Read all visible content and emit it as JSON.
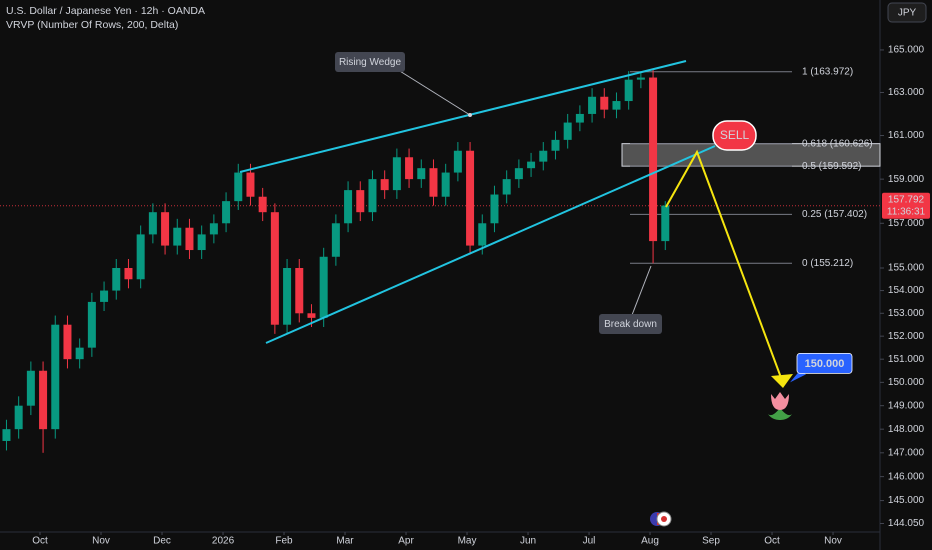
{
  "header": {
    "symbol": "U.S. Dollar / Japanese Yen · 12h · OANDA",
    "indicator": "VRVP (Number Of Rows, 200, Delta)",
    "currency": "JPY"
  },
  "chart_data": {
    "type": "candlestick",
    "x": [
      -0.55,
      -0.35,
      -0.15,
      0.05,
      0.25,
      0.45,
      0.65,
      0.85,
      1.05,
      1.25,
      1.45,
      1.65,
      1.85,
      2.05,
      2.25,
      2.45,
      2.65,
      2.85,
      3.05,
      3.25,
      3.45,
      3.65,
      3.85,
      4.05,
      4.25,
      4.45,
      4.65,
      4.85,
      5.05,
      5.25,
      5.45,
      5.65,
      5.85,
      6.05,
      6.25,
      6.45,
      6.65,
      6.85,
      7.05,
      7.25,
      7.45,
      7.65,
      7.85,
      8.05,
      8.25,
      8.45,
      8.65,
      8.85,
      9.05,
      9.25,
      9.45,
      9.65,
      9.85,
      10.05,
      10.25
    ],
    "open": [
      147.5,
      148,
      149,
      150.5,
      148,
      152.5,
      151,
      151.5,
      153.5,
      154,
      155,
      154.5,
      156.5,
      157.5,
      156,
      156.8,
      155.8,
      156.5,
      157,
      158,
      159.3,
      158.2,
      157.5,
      152.5,
      155,
      153,
      152.8,
      155.5,
      157,
      158.5,
      157.5,
      159,
      158.5,
      160,
      159,
      159.5,
      158.2,
      159.3,
      160.3,
      156,
      157,
      158.3,
      159,
      159.5,
      159.8,
      160.3,
      160.8,
      161.6,
      162,
      162.8,
      162.2,
      162.6,
      163.6,
      163.7,
      156.2
    ],
    "high": [
      148.4,
      149.4,
      150.9,
      150.9,
      152.9,
      152.9,
      151.9,
      153.9,
      154.4,
      155.4,
      155.4,
      156.9,
      157.9,
      157.9,
      157.2,
      157.2,
      156.9,
      157.4,
      158.4,
      159.7,
      159.7,
      158.6,
      157.9,
      155.4,
      155.4,
      153.4,
      155.9,
      157.4,
      158.9,
      158.9,
      159.4,
      159.4,
      160.4,
      160.4,
      159.9,
      159.9,
      159.7,
      160.7,
      160.7,
      157.4,
      158.7,
      159.4,
      159.9,
      160.2,
      160.7,
      161.2,
      162,
      162.4,
      163.2,
      163.2,
      163,
      164,
      163.97,
      164.1,
      158
    ],
    "low": [
      147.1,
      147.6,
      148.6,
      147,
      147.6,
      150.6,
      150.6,
      151.1,
      153.1,
      153.6,
      154.1,
      154.1,
      156.1,
      155.6,
      155.6,
      155.4,
      155.4,
      156.1,
      156.6,
      157.6,
      157.8,
      157.1,
      152.1,
      152.1,
      152.6,
      152.4,
      152.4,
      155.1,
      156.6,
      157.1,
      157.1,
      158.1,
      158.1,
      158.6,
      158.6,
      157.8,
      157.8,
      158.9,
      155.6,
      155.6,
      156.6,
      157.9,
      158.6,
      159.1,
      159.4,
      159.9,
      160.4,
      161.2,
      161.6,
      161.8,
      161.8,
      162.2,
      163.2,
      155.21,
      155.8
    ],
    "close": [
      148,
      149,
      150.5,
      148,
      152.5,
      151,
      151.5,
      153.5,
      154,
      155,
      154.5,
      156.5,
      157.5,
      156,
      156.8,
      155.8,
      156.5,
      157,
      158,
      159.3,
      158.2,
      157.5,
      152.5,
      155,
      153,
      152.8,
      155.5,
      157,
      158.5,
      157.5,
      159,
      158.5,
      160,
      159,
      159.5,
      158.2,
      159.3,
      160.3,
      156,
      157,
      158.3,
      159,
      159.5,
      159.8,
      160.3,
      160.8,
      161.6,
      162,
      162.8,
      162.2,
      162.6,
      163.6,
      163.7,
      156.2,
      157.8
    ],
    "up_color": "#089981",
    "down_color": "#f23645",
    "xlim": [
      -0.656,
      13.77
    ],
    "xticks": [
      {
        "value": 0,
        "label": "Oct"
      },
      {
        "value": 1,
        "label": "Nov"
      },
      {
        "value": 2,
        "label": "Dec"
      },
      {
        "value": 3,
        "label": "2026"
      },
      {
        "value": 4,
        "label": "Feb"
      },
      {
        "value": 5,
        "label": "Mar"
      },
      {
        "value": 6,
        "label": "Apr"
      },
      {
        "value": 7,
        "label": "May"
      },
      {
        "value": 8,
        "label": "Jun"
      },
      {
        "value": 9,
        "label": "Jul"
      },
      {
        "value": 10,
        "label": "Aug"
      },
      {
        "value": 11,
        "label": "Sep"
      },
      {
        "value": 12,
        "label": "Oct"
      },
      {
        "value": 13,
        "label": "Nov"
      }
    ],
    "ylim": [
      143.7,
      167.38
    ],
    "log_scale": true,
    "yticks": [
      {
        "value": 165,
        "label": "165.000"
      },
      {
        "value": 163,
        "label": "163.000"
      },
      {
        "value": 161,
        "label": "161.000"
      },
      {
        "value": 159,
        "label": "159.000"
      },
      {
        "value": 157,
        "label": "157.000"
      },
      {
        "value": 155,
        "label": "155.000"
      },
      {
        "value": 154,
        "label": "154.000"
      },
      {
        "value": 153,
        "label": "153.000"
      },
      {
        "value": 152,
        "label": "152.000"
      },
      {
        "value": 151,
        "label": "151.000"
      },
      {
        "value": 150,
        "label": "150.000"
      },
      {
        "value": 149,
        "label": "149.000"
      },
      {
        "value": 148,
        "label": "148.000"
      },
      {
        "value": 147,
        "label": "147.000"
      },
      {
        "value": 146,
        "label": "146.000"
      },
      {
        "value": 145,
        "label": "145.000"
      },
      {
        "value": 144.05,
        "label": "144.050"
      }
    ],
    "fib_levels": [
      {
        "value": 163.972,
        "label": "1 (163.972)"
      },
      {
        "value": 160.626,
        "label": "0.618 (160.626)"
      },
      {
        "value": 159.592,
        "label": "0.5 (159.592)"
      },
      {
        "value": 157.402,
        "label": "0.25 (157.402)"
      },
      {
        "value": 155.212,
        "label": "0 (155.212)"
      }
    ],
    "last_price": 157.792,
    "countdown": "11:36:31",
    "target": {
      "value": 150,
      "label": "150.000"
    },
    "annotations": [
      "Rising Wedge",
      "Break down",
      "SELL"
    ]
  }
}
